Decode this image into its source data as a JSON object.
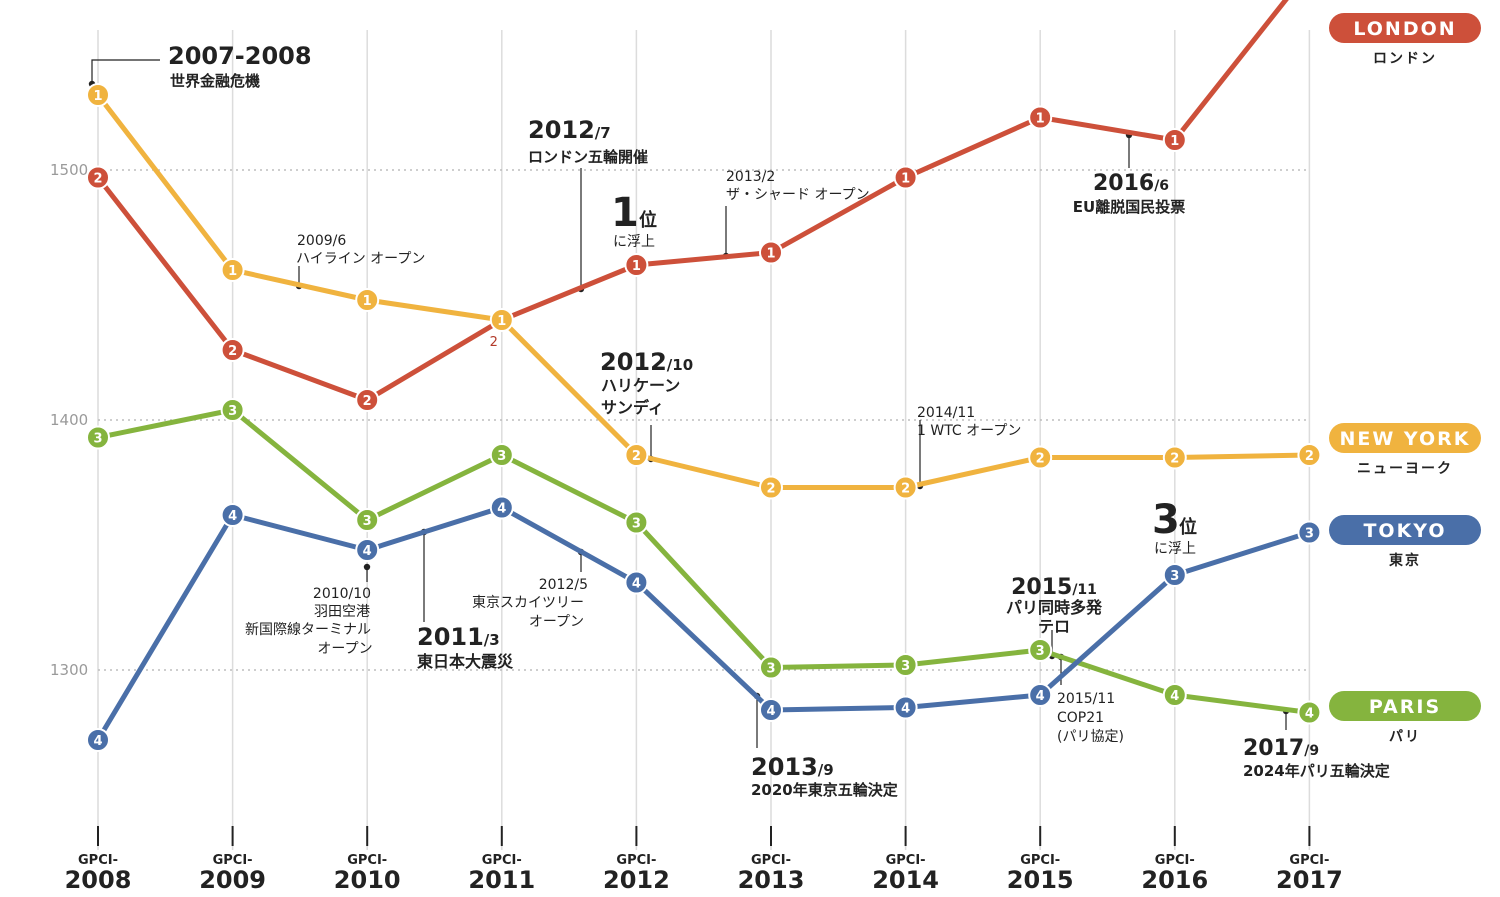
{
  "chart_data": {
    "type": "line",
    "x": [
      2008,
      2009,
      2010,
      2011,
      2012,
      2013,
      2014,
      2015,
      2016,
      2017
    ],
    "tick_prefix": "GPCI-",
    "ylim": [
      1230,
      1600
    ],
    "yticks": [
      1300,
      1400,
      1500
    ],
    "grid": "dotted horizontal at ticks, vertical at each year",
    "series": [
      {
        "key": "london",
        "name": "LONDON",
        "subname": "ロンドン",
        "color": "#cd503a",
        "values": [
          1497,
          1428,
          1408,
          1440,
          1462,
          1467,
          1497,
          1521,
          1512,
          1580
        ],
        "ranks": [
          "2",
          "2",
          "2",
          "1",
          "1",
          "1",
          "1",
          "1",
          "1",
          "1"
        ],
        "rank_marker": [
          true,
          true,
          true,
          false,
          true,
          true,
          true,
          true,
          true,
          true
        ]
      },
      {
        "key": "newyork",
        "name": "NEW YORK",
        "subname": "ニューヨーク",
        "color": "#f0b33f",
        "values": [
          1530,
          1460,
          1448,
          1440,
          1386,
          1373,
          1373,
          1385,
          1385,
          1386
        ],
        "ranks": [
          "1",
          "1",
          "1",
          "1",
          "2",
          "2",
          "2",
          "2",
          "2",
          "2"
        ]
      },
      {
        "key": "tokyo",
        "name": "TOKYO",
        "subname": "東京",
        "color": "#4a6fa8",
        "values": [
          1272,
          1362,
          1348,
          1365,
          1335,
          1284,
          1285,
          1290,
          1338,
          1355
        ],
        "ranks": [
          "4",
          "4",
          "4",
          "4",
          "4",
          "4",
          "4",
          "4",
          "3",
          "3"
        ]
      },
      {
        "key": "paris",
        "name": "PARIS",
        "subname": "パリ",
        "color": "#85b43e",
        "values": [
          1393,
          1404,
          1360,
          1386,
          1359,
          1301,
          1302,
          1308,
          1290,
          1283
        ],
        "ranks": [
          "3",
          "3",
          "3",
          "3",
          "3",
          "3",
          "3",
          "3",
          "4",
          "4"
        ]
      }
    ],
    "rank_below_label": "2",
    "annotations": [
      {
        "id": "a1",
        "line1": "2007-2008",
        "line2": "世界金融危機"
      },
      {
        "id": "a2",
        "line1": "2009/6",
        "line2": "ハイライン オープン"
      },
      {
        "id": "a3",
        "line1": "2012",
        "line1b": "/7",
        "line2": "ロンドン五輪開催"
      },
      {
        "id": "a4",
        "line1": "2013/2",
        "line2": "ザ・シャード オープン"
      },
      {
        "id": "a5",
        "line1": "2016",
        "line1b": "/6",
        "line2": "EU離脱国民投票"
      },
      {
        "id": "a6",
        "big": "1",
        "bigsuffix": "位",
        "line2": "に浮上"
      },
      {
        "id": "a7",
        "line1": "2012",
        "line1b": "/10",
        "line2": "ハリケーン",
        "line3": "サンディ"
      },
      {
        "id": "a8",
        "line1": "2014/11",
        "line2": "1 WTC オープン"
      },
      {
        "id": "a9",
        "line1": "2010/10",
        "line2": "羽田空港",
        "line3": "新国際線ターミナル",
        "line4": "オープン"
      },
      {
        "id": "a10",
        "line1": "2011",
        "line1b": "/3",
        "line2": "東日本大震災"
      },
      {
        "id": "a11",
        "line1": "2012/5",
        "line2": "東京スカイツリー",
        "line3": "オープン"
      },
      {
        "id": "a12",
        "line1": "2013",
        "line1b": "/9",
        "line2": "2020年東京五輪決定"
      },
      {
        "id": "a13",
        "line1": "2015",
        "line1b": "/11",
        "line2": "パリ同時多発",
        "line3": "テロ"
      },
      {
        "id": "a14",
        "line1": "2015/11",
        "line2": "COP21",
        "line3": "(パリ協定)"
      },
      {
        "id": "a15",
        "big": "3",
        "bigsuffix": "位",
        "line2": "に浮上"
      },
      {
        "id": "a16",
        "line1": "2017",
        "line1b": "/9",
        "line2": "2024年パリ五輪決定"
      }
    ]
  }
}
